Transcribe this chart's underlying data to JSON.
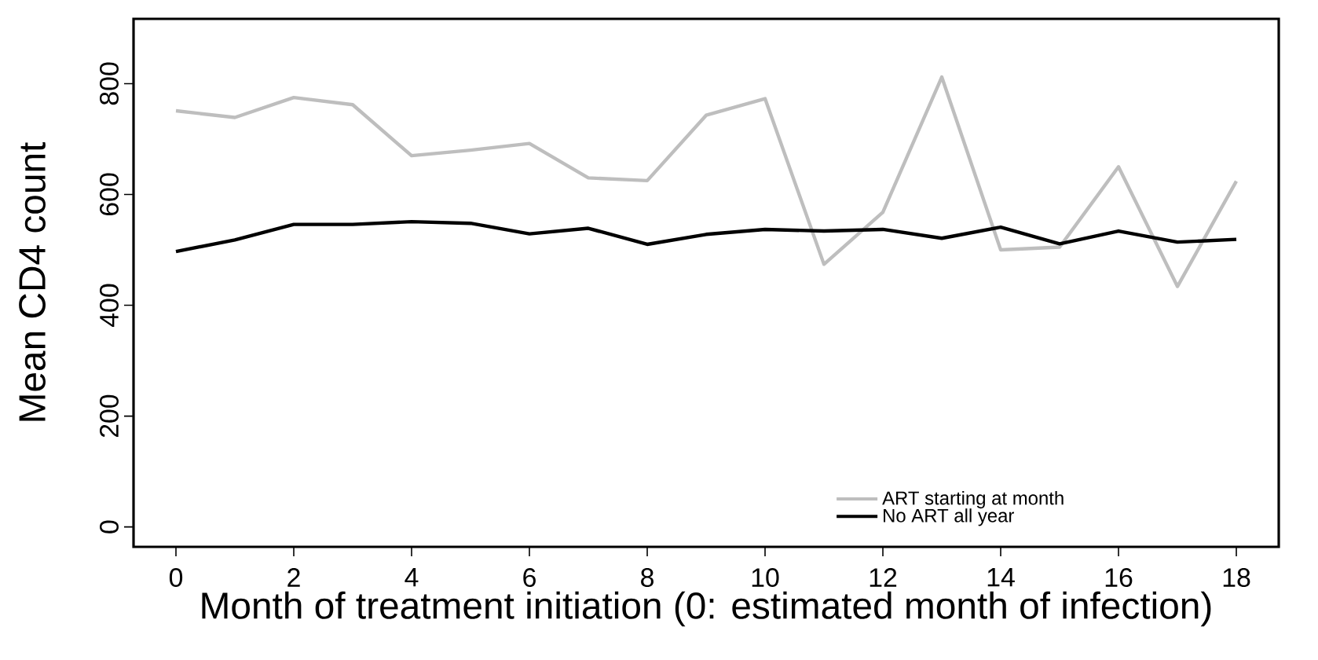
{
  "chart_data": {
    "type": "line",
    "xlabel": "Month of treatment initiation (0: estimated month of infection)",
    "ylabel": "Mean CD4 count",
    "x": [
      0,
      1,
      2,
      3,
      4,
      5,
      6,
      7,
      8,
      9,
      10,
      11,
      12,
      13,
      14,
      15,
      16,
      17,
      18
    ],
    "series": [
      {
        "name": "ART starting at month",
        "color": "#bebebe",
        "values": [
          751,
          739,
          775,
          762,
          670,
          680,
          692,
          630,
          625,
          743,
          773,
          474,
          568,
          812,
          500,
          505,
          650,
          434,
          624
        ]
      },
      {
        "name": "No ART all year",
        "color": "#000000",
        "values": [
          497,
          518,
          546,
          546,
          551,
          548,
          529,
          539,
          510,
          528,
          537,
          534,
          537,
          521,
          541,
          511,
          534,
          514,
          519
        ]
      }
    ],
    "xlim": [
      -0.72,
      18.72
    ],
    "ylim": [
      -36,
      917
    ],
    "xticks": [
      0,
      2,
      4,
      6,
      8,
      10,
      12,
      14,
      16,
      18
    ],
    "yticks": [
      0,
      200,
      400,
      600,
      800
    ],
    "legend": "bottom right",
    "grid": false,
    "marker": "none",
    "line_style": "solid"
  }
}
